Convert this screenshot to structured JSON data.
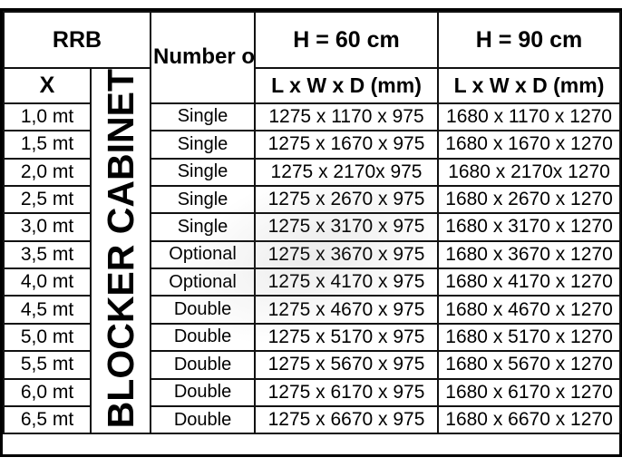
{
  "table": {
    "header": {
      "rrb": "RRB",
      "x_label": "X",
      "cabinet_label": "BLOCKER CABINET",
      "pistons_label": "Number of Pistons",
      "h60_label": "H = 60 cm",
      "h90_label": "H = 90 cm",
      "dims60_label": "L x W x D (mm)",
      "dims90_label": "L x W x D (mm)"
    },
    "rows": [
      {
        "x": "1,0 mt",
        "pistons": "Single",
        "h60": "1275 x 1170 x 975",
        "h90": "1680 x 1170 x 1270"
      },
      {
        "x": "1,5 mt",
        "pistons": "Single",
        "h60": "1275 x 1670 x 975",
        "h90": "1680 x 1670 x 1270"
      },
      {
        "x": "2,0 mt",
        "pistons": "Single",
        "h60": "1275 x 2170x 975",
        "h90": "1680 x 2170x 1270"
      },
      {
        "x": "2,5 mt",
        "pistons": "Single",
        "h60": "1275 x 2670 x 975",
        "h90": "1680 x 2670 x 1270"
      },
      {
        "x": "3,0 mt",
        "pistons": "Single",
        "h60": "1275 x 3170 x 975",
        "h90": "1680 x 3170 x 1270"
      },
      {
        "x": "3,5 mt",
        "pistons": "Optional",
        "h60": "1275 x 3670 x 975",
        "h90": "1680 x 3670 x 1270"
      },
      {
        "x": "4,0 mt",
        "pistons": "Optional",
        "h60": "1275 x 4170 x 975",
        "h90": "1680 x 4170 x 1270"
      },
      {
        "x": "4,5 mt",
        "pistons": "Double",
        "h60": "1275 x 4670 x 975",
        "h90": "1680 x 4670 x 1270"
      },
      {
        "x": "5,0 mt",
        "pistons": "Double",
        "h60": "1275 x 5170 x 975",
        "h90": "1680 x 5170 x 1270"
      },
      {
        "x": "5,5 mt",
        "pistons": "Double",
        "h60": "1275 x 5670 x 975",
        "h90": "1680 x 5670 x 1270"
      },
      {
        "x": "6,0 mt",
        "pistons": "Double",
        "h60": "1275 x 6170 x 975",
        "h90": "1680 x 6170 x 1270"
      },
      {
        "x": "6,5 mt",
        "pistons": "Double",
        "h60": "1275 x 6670 x 975",
        "h90": "1680 x 6670 x 1270"
      }
    ]
  }
}
